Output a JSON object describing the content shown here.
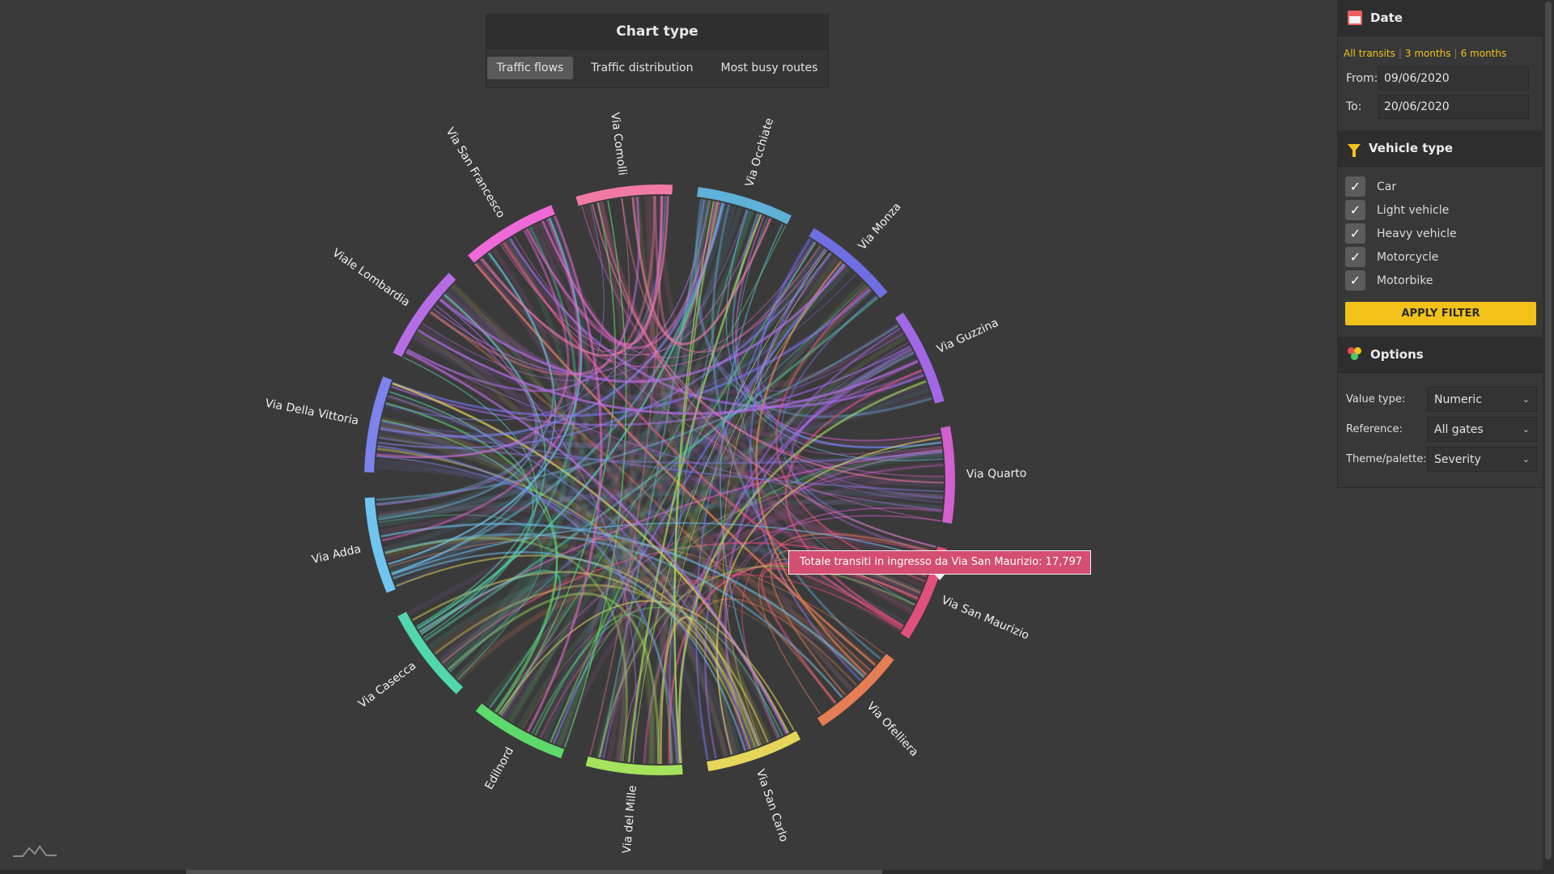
{
  "chart_type_panel": {
    "title": "Chart type",
    "tabs": [
      {
        "label": "Traffic flows",
        "active": true
      },
      {
        "label": "Traffic distribution",
        "active": false
      },
      {
        "label": "Most busy routes",
        "active": false
      }
    ]
  },
  "chart_data": {
    "type": "chord",
    "gates": [
      {
        "name": "Via Occhiate",
        "color": "#5fb1d8"
      },
      {
        "name": "Via Monza",
        "color": "#6f6ee3"
      },
      {
        "name": "Via Guzzina",
        "color": "#a267e6"
      },
      {
        "name": "Via Quarto",
        "color": "#d45fcf"
      },
      {
        "name": "Via San Maurizio",
        "color": "#e34f7b"
      },
      {
        "name": "Via Ofelliera",
        "color": "#e57d55"
      },
      {
        "name": "Via San Carlo",
        "color": "#e5d55a"
      },
      {
        "name": "Via del Mille",
        "color": "#a6e35c"
      },
      {
        "name": "Edilnord",
        "color": "#5ed96c"
      },
      {
        "name": "Via Casecca",
        "color": "#51d6ad"
      },
      {
        "name": "Via Adda",
        "color": "#6fc5f0"
      },
      {
        "name": "Via Della Vittoria",
        "color": "#7d82ec"
      },
      {
        "name": "Viale Lombardia",
        "color": "#b56de6"
      },
      {
        "name": "Via San Francesco",
        "color": "#ef6ad8"
      },
      {
        "name": "Via Comolli",
        "color": "#f07aa5"
      }
    ],
    "highlighted_gate": "Via San Maurizio",
    "tooltip": "Totale transiti in ingresso da Via San Maurizio: 17,797"
  },
  "sidebar": {
    "date": {
      "title": "Date",
      "quick_ranges": [
        "All transits",
        "3 months",
        "6 months"
      ],
      "from_label": "From:",
      "from_value": "09/06/2020",
      "to_label": "To:",
      "to_value": "20/06/2020"
    },
    "vehicle": {
      "title": "Vehicle type",
      "items": [
        {
          "label": "Car",
          "checked": true
        },
        {
          "label": "Light vehicle",
          "checked": true
        },
        {
          "label": "Heavy vehicle",
          "checked": true
        },
        {
          "label": "Motorcycle",
          "checked": true
        },
        {
          "label": "Motorbike",
          "checked": true
        }
      ],
      "apply_label": "APPLY FILTER"
    },
    "options": {
      "title": "Options",
      "value_type_label": "Value type:",
      "value_type_value": "Numeric",
      "reference_label": "Reference:",
      "reference_value": "All gates",
      "theme_label": "Theme/palette:",
      "theme_value": "Severity"
    }
  },
  "colors": {
    "accent": "#f2c21b",
    "tooltip_bg": "#d44e72",
    "background": "#3a3a3a"
  }
}
